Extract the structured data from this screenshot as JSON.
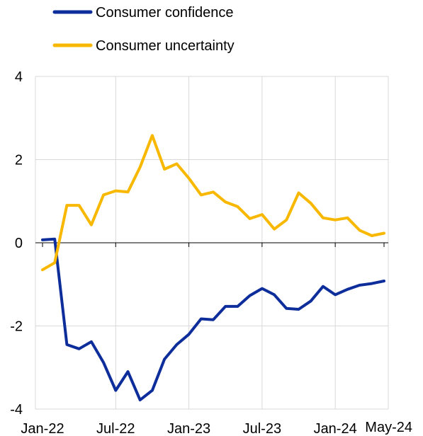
{
  "chart_data": {
    "type": "line",
    "title": "",
    "xlabel": "",
    "ylabel": "",
    "ylim": [
      -4,
      4
    ],
    "yticks": [
      -4,
      -2,
      0,
      2,
      4
    ],
    "xticks": [
      {
        "label": "Jan-22",
        "index": 0
      },
      {
        "label": "Jul-22",
        "index": 6
      },
      {
        "label": "Jan-23",
        "index": 12
      },
      {
        "label": "Jul-23",
        "index": 18
      },
      {
        "label": "Jan-24",
        "index": 24
      },
      {
        "label": "May-24",
        "index": 28
      }
    ],
    "x": [
      "Jan-22",
      "Feb-22",
      "Mar-22",
      "Apr-22",
      "May-22",
      "Jun-22",
      "Jul-22",
      "Aug-22",
      "Sep-22",
      "Oct-22",
      "Nov-22",
      "Dec-22",
      "Jan-23",
      "Feb-23",
      "Mar-23",
      "Apr-23",
      "May-23",
      "Jun-23",
      "Jul-23",
      "Aug-23",
      "Sep-23",
      "Oct-23",
      "Nov-23",
      "Dec-23",
      "Jan-24",
      "Feb-24",
      "Mar-24",
      "Apr-24",
      "May-24"
    ],
    "grid": true,
    "legend": "top-left",
    "series": [
      {
        "name": "Consumer confidence",
        "color": "#0d2d9a",
        "values": [
          0.07,
          0.09,
          -2.45,
          -2.55,
          -2.38,
          -2.88,
          -3.55,
          -3.1,
          -3.78,
          -3.55,
          -2.8,
          -2.45,
          -2.2,
          -1.83,
          -1.85,
          -1.53,
          -1.53,
          -1.27,
          -1.1,
          -1.25,
          -1.58,
          -1.6,
          -1.4,
          -1.05,
          -1.25,
          -1.12,
          -1.02,
          -0.98,
          -0.92
        ]
      },
      {
        "name": "Consumer uncertainty",
        "color": "#f8b800",
        "values": [
          -0.65,
          -0.48,
          0.9,
          0.9,
          0.43,
          1.15,
          1.25,
          1.22,
          1.82,
          2.58,
          1.77,
          1.9,
          1.55,
          1.15,
          1.22,
          0.98,
          0.87,
          0.58,
          0.68,
          0.33,
          0.55,
          1.2,
          0.95,
          0.6,
          0.55,
          0.6,
          0.3,
          0.17,
          0.23
        ]
      }
    ]
  }
}
